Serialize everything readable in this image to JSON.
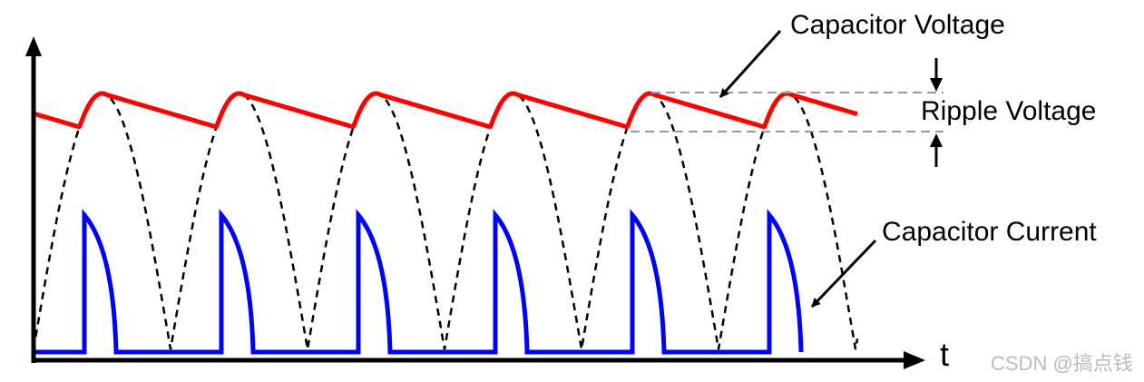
{
  "labels": {
    "capacitor_voltage": "Capacitor Voltage",
    "ripple_voltage": "Ripple Voltage",
    "capacitor_current": "Capacitor Current",
    "time_axis": "t"
  },
  "watermark": "CSDN @搞点钱"
}
